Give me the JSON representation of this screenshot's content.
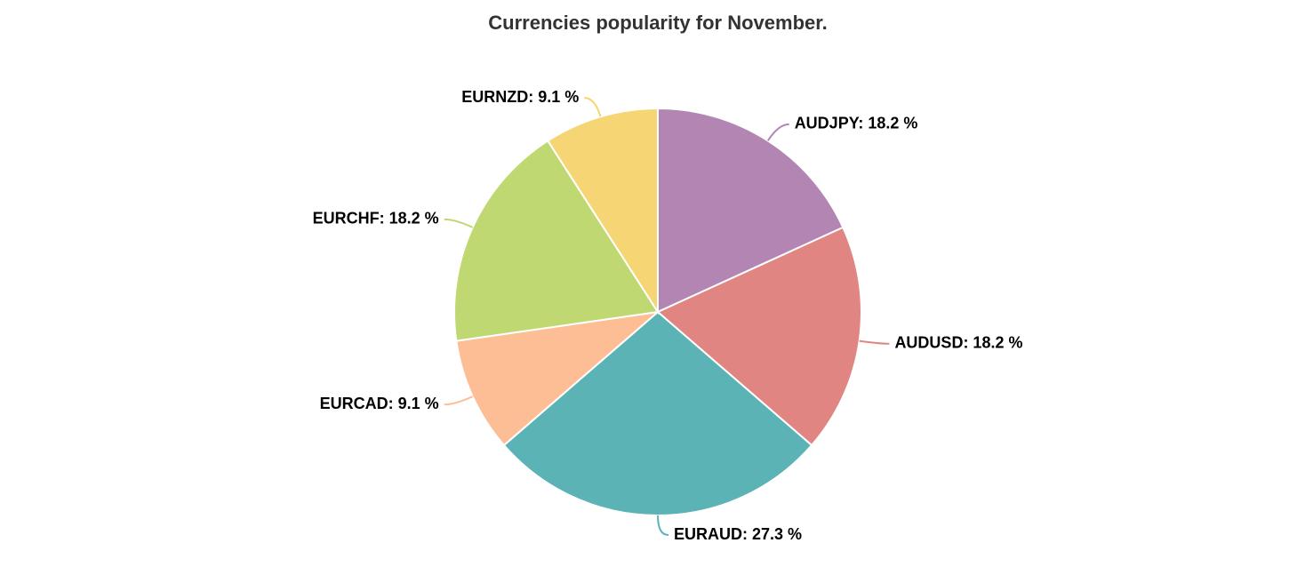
{
  "chart_data": {
    "type": "pie",
    "title": "Currencies popularity for November.",
    "values": [
      18.2,
      18.2,
      27.3,
      9.1,
      18.2,
      9.1
    ],
    "value_labels": [
      "AUDJPY: 18.2 %",
      "AUDUSD: 18.2 %",
      "EURAUD: 27.3 %",
      "EURCAD: 9.1 %",
      "EURCHF: 18.2 %",
      "EURNZD: 9.1 %"
    ],
    "colors": [
      "#b385b3",
      "#e08582",
      "#5cb3b5",
      "#fdbe95",
      "#bfd872",
      "#f6d574"
    ]
  }
}
